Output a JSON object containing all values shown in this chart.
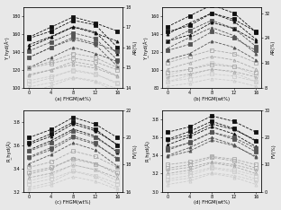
{
  "x": [
    0,
    4,
    8,
    12,
    16
  ],
  "subplot_labels": [
    "(a) FHGM(wt%)",
    "(b) FHGM(wt%)",
    "(c) FHGM(wt%)",
    "(d) FHGM(wt%)"
  ],
  "panel_a": {
    "left_ylabel": "Y_hyd(Å²)",
    "right_ylabel": "AR(%)",
    "left_ylim": [
      100,
      190
    ],
    "right_ylim": [
      14,
      18
    ],
    "left_yticks": [
      100,
      120,
      140,
      160,
      180
    ],
    "right_yticks": [
      14,
      15,
      16,
      17,
      18
    ],
    "series": [
      {
        "y": [
          155,
          163,
          175,
          170,
          145
        ],
        "marker": "s",
        "filled": true,
        "axis": "left"
      },
      {
        "y": [
          148,
          157,
          168,
          162,
          138
        ],
        "marker": "^",
        "filled": true,
        "axis": "left"
      },
      {
        "y": [
          141,
          151,
          161,
          155,
          131
        ],
        "marker": "s",
        "filled": true,
        "axis": "left"
      },
      {
        "y": [
          134,
          145,
          154,
          148,
          124
        ],
        "marker": "^",
        "filled": true,
        "axis": "left"
      },
      {
        "y": [
          122,
          127,
          133,
          129,
          120
        ],
        "marker": "s",
        "filled": false,
        "axis": "left"
      },
      {
        "y": [
          115,
          120,
          126,
          122,
          113
        ],
        "marker": "^",
        "filled": false,
        "axis": "left"
      },
      {
        "y": [
          108,
          113,
          119,
          115,
          106
        ],
        "marker": "s",
        "filled": false,
        "axis": "left"
      },
      {
        "y": [
          101,
          106,
          112,
          108,
          99
        ],
        "marker": "^",
        "filled": false,
        "axis": "left"
      },
      {
        "y": [
          16.5,
          17.0,
          17.5,
          17.2,
          16.8
        ],
        "marker": "s",
        "filled": true,
        "axis": "right"
      },
      {
        "y": [
          16.0,
          16.5,
          17.0,
          16.7,
          16.3
        ],
        "marker": "^",
        "filled": true,
        "axis": "right"
      },
      {
        "y": [
          15.5,
          16.0,
          16.5,
          16.2,
          15.8
        ],
        "marker": "s",
        "filled": true,
        "axis": "right"
      },
      {
        "y": [
          15.0,
          15.5,
          16.0,
          15.7,
          15.3
        ],
        "marker": "^",
        "filled": true,
        "axis": "right"
      },
      {
        "y": [
          15.0,
          15.3,
          15.7,
          15.5,
          15.0
        ],
        "marker": "s",
        "filled": false,
        "axis": "right"
      },
      {
        "y": [
          14.6,
          14.9,
          15.3,
          15.1,
          14.6
        ],
        "marker": "^",
        "filled": false,
        "axis": "right"
      },
      {
        "y": [
          14.2,
          14.5,
          14.9,
          14.7,
          14.2
        ],
        "marker": "s",
        "filled": false,
        "axis": "right"
      },
      {
        "y": [
          13.8,
          14.1,
          14.5,
          14.3,
          13.8
        ],
        "marker": "^",
        "filled": false,
        "axis": "right"
      }
    ]
  },
  "panel_b": {
    "left_ylabel": "Y_hyd(Å²)",
    "right_ylabel": "AR(%)",
    "left_ylim": [
      80,
      170
    ],
    "right_ylim": [
      8,
      34
    ],
    "left_yticks": [
      80,
      100,
      120,
      140,
      160
    ],
    "right_yticks": [
      8,
      16,
      24,
      32
    ],
    "series": [
      {
        "y": [
          148,
          160,
          172,
          163,
          142
        ],
        "marker": "s",
        "filled": true,
        "axis": "left"
      },
      {
        "y": [
          140,
          152,
          163,
          154,
          134
        ],
        "marker": "^",
        "filled": true,
        "axis": "left"
      },
      {
        "y": [
          132,
          144,
          155,
          146,
          126
        ],
        "marker": "s",
        "filled": true,
        "axis": "left"
      },
      {
        "y": [
          124,
          136,
          147,
          138,
          118
        ],
        "marker": "^",
        "filled": true,
        "axis": "left"
      },
      {
        "y": [
          108,
          115,
          122,
          118,
          108
        ],
        "marker": "s",
        "filled": false,
        "axis": "left"
      },
      {
        "y": [
          101,
          108,
          115,
          111,
          101
        ],
        "marker": "^",
        "filled": false,
        "axis": "left"
      },
      {
        "y": [
          94,
          101,
          108,
          104,
          94
        ],
        "marker": "s",
        "filled": false,
        "axis": "left"
      },
      {
        "y": [
          87,
          94,
          101,
          97,
          87
        ],
        "marker": "^",
        "filled": false,
        "axis": "left"
      },
      {
        "y": [
          26,
          28,
          32,
          30,
          26
        ],
        "marker": "s",
        "filled": true,
        "axis": "right"
      },
      {
        "y": [
          23,
          25,
          29,
          27,
          23
        ],
        "marker": "^",
        "filled": true,
        "axis": "right"
      },
      {
        "y": [
          20,
          22,
          26,
          24,
          20
        ],
        "marker": "s",
        "filled": true,
        "axis": "right"
      },
      {
        "y": [
          17,
          19,
          23,
          21,
          17
        ],
        "marker": "^",
        "filled": true,
        "axis": "right"
      },
      {
        "y": [
          13.0,
          14.0,
          15.5,
          14.8,
          13.0
        ],
        "marker": "s",
        "filled": false,
        "axis": "right"
      },
      {
        "y": [
          11.5,
          12.5,
          14.0,
          13.3,
          11.5
        ],
        "marker": "^",
        "filled": false,
        "axis": "right"
      },
      {
        "y": [
          10.0,
          11.0,
          12.5,
          11.8,
          10.0
        ],
        "marker": "s",
        "filled": false,
        "axis": "right"
      },
      {
        "y": [
          8.5,
          9.5,
          11.0,
          10.3,
          8.5
        ],
        "marker": "^",
        "filled": false,
        "axis": "right"
      }
    ]
  },
  "panel_c": {
    "left_ylabel": "R_hyd(Å)",
    "right_ylabel": "FV(%)",
    "left_ylim": [
      3.2,
      3.9
    ],
    "right_ylim": [
      16,
      22
    ],
    "left_yticks": [
      3.2,
      3.4,
      3.6,
      3.8
    ],
    "right_yticks": [
      16,
      18,
      20,
      22
    ],
    "series": [
      {
        "y": [
          3.62,
          3.7,
          3.8,
          3.74,
          3.6
        ],
        "marker": "s",
        "filled": true,
        "axis": "left"
      },
      {
        "y": [
          3.56,
          3.64,
          3.74,
          3.68,
          3.54
        ],
        "marker": "^",
        "filled": true,
        "axis": "left"
      },
      {
        "y": [
          3.5,
          3.58,
          3.68,
          3.62,
          3.48
        ],
        "marker": "s",
        "filled": true,
        "axis": "left"
      },
      {
        "y": [
          3.44,
          3.52,
          3.62,
          3.56,
          3.42
        ],
        "marker": "^",
        "filled": true,
        "axis": "left"
      },
      {
        "y": [
          3.37,
          3.41,
          3.48,
          3.44,
          3.37
        ],
        "marker": "s",
        "filled": false,
        "axis": "left"
      },
      {
        "y": [
          3.32,
          3.36,
          3.43,
          3.39,
          3.32
        ],
        "marker": "^",
        "filled": false,
        "axis": "left"
      },
      {
        "y": [
          3.27,
          3.31,
          3.38,
          3.34,
          3.27
        ],
        "marker": "s",
        "filled": false,
        "axis": "left"
      },
      {
        "y": [
          3.22,
          3.26,
          3.33,
          3.29,
          3.22
        ],
        "marker": "^",
        "filled": false,
        "axis": "left"
      },
      {
        "y": [
          20.0,
          20.6,
          21.5,
          21.0,
          20.0
        ],
        "marker": "s",
        "filled": true,
        "axis": "right"
      },
      {
        "y": [
          19.5,
          20.1,
          21.0,
          20.5,
          19.5
        ],
        "marker": "^",
        "filled": true,
        "axis": "right"
      },
      {
        "y": [
          19.0,
          19.6,
          20.5,
          20.0,
          19.0
        ],
        "marker": "s",
        "filled": true,
        "axis": "right"
      },
      {
        "y": [
          18.5,
          19.1,
          20.0,
          19.5,
          18.5
        ],
        "marker": "^",
        "filled": true,
        "axis": "right"
      },
      {
        "y": [
          17.8,
          18.2,
          19.0,
          18.6,
          17.8
        ],
        "marker": "s",
        "filled": false,
        "axis": "right"
      },
      {
        "y": [
          17.3,
          17.7,
          18.5,
          18.1,
          17.3
        ],
        "marker": "^",
        "filled": false,
        "axis": "right"
      },
      {
        "y": [
          16.8,
          17.2,
          18.0,
          17.6,
          16.8
        ],
        "marker": "s",
        "filled": false,
        "axis": "right"
      },
      {
        "y": [
          16.3,
          16.7,
          17.5,
          17.1,
          16.3
        ],
        "marker": "^",
        "filled": false,
        "axis": "right"
      }
    ]
  },
  "panel_d": {
    "left_ylabel": "R_hyd(Å)",
    "right_ylabel": "FV(%)",
    "left_ylim": [
      3.0,
      3.9
    ],
    "right_ylim": [
      0,
      30
    ],
    "left_yticks": [
      3.0,
      3.2,
      3.4,
      3.6,
      3.8
    ],
    "right_yticks": [
      0,
      10,
      20,
      30
    ],
    "series": [
      {
        "y": [
          3.58,
          3.67,
          3.78,
          3.7,
          3.56
        ],
        "marker": "s",
        "filled": true,
        "axis": "left"
      },
      {
        "y": [
          3.52,
          3.61,
          3.72,
          3.64,
          3.5
        ],
        "marker": "^",
        "filled": true,
        "axis": "left"
      },
      {
        "y": [
          3.46,
          3.55,
          3.66,
          3.58,
          3.44
        ],
        "marker": "s",
        "filled": true,
        "axis": "left"
      },
      {
        "y": [
          3.4,
          3.49,
          3.6,
          3.52,
          3.38
        ],
        "marker": "^",
        "filled": true,
        "axis": "left"
      },
      {
        "y": [
          3.26,
          3.3,
          3.38,
          3.34,
          3.26
        ],
        "marker": "s",
        "filled": false,
        "axis": "left"
      },
      {
        "y": [
          3.2,
          3.24,
          3.32,
          3.28,
          3.2
        ],
        "marker": "^",
        "filled": false,
        "axis": "left"
      },
      {
        "y": [
          3.14,
          3.18,
          3.26,
          3.22,
          3.14
        ],
        "marker": "s",
        "filled": false,
        "axis": "left"
      },
      {
        "y": [
          3.08,
          3.12,
          3.2,
          3.16,
          3.08
        ],
        "marker": "^",
        "filled": false,
        "axis": "left"
      },
      {
        "y": [
          22,
          24,
          28,
          26,
          22
        ],
        "marker": "s",
        "filled": true,
        "axis": "right"
      },
      {
        "y": [
          19,
          21,
          25,
          23,
          19
        ],
        "marker": "^",
        "filled": true,
        "axis": "right"
      },
      {
        "y": [
          16,
          18,
          22,
          20,
          16
        ],
        "marker": "s",
        "filled": true,
        "axis": "right"
      },
      {
        "y": [
          13,
          15,
          19,
          17,
          13
        ],
        "marker": "^",
        "filled": true,
        "axis": "right"
      },
      {
        "y": [
          10,
          11,
          13,
          12,
          10
        ],
        "marker": "s",
        "filled": false,
        "axis": "right"
      },
      {
        "y": [
          8,
          9,
          11,
          10,
          8
        ],
        "marker": "^",
        "filled": false,
        "axis": "right"
      },
      {
        "y": [
          6,
          7,
          9,
          8,
          6
        ],
        "marker": "s",
        "filled": false,
        "axis": "right"
      },
      {
        "y": [
          4,
          5,
          7,
          6,
          4
        ],
        "marker": "^",
        "filled": false,
        "axis": "right"
      }
    ]
  },
  "bg_color": "#e8e8e8"
}
